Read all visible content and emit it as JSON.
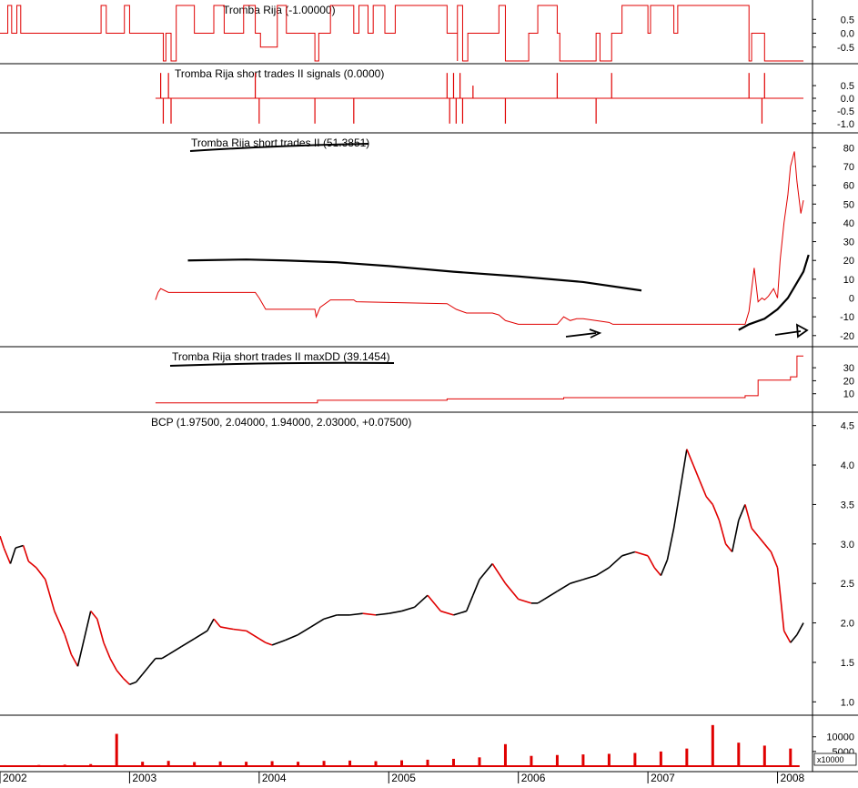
{
  "colors": {
    "series": "#e00000",
    "price_up": "#000000",
    "price_down": "#e00000",
    "annotation": "#000000",
    "axis": "#000000",
    "background": "#ffffff"
  },
  "x_axis": {
    "range": [
      2002.0,
      2008.27
    ],
    "tick_labels": [
      {
        "label": "2002",
        "x": 2002.0
      },
      {
        "label": "2003",
        "x": 2003.0
      },
      {
        "label": "2004",
        "x": 2004.0
      },
      {
        "label": "2005",
        "x": 2005.0
      },
      {
        "label": "2006",
        "x": 2006.0
      },
      {
        "label": "2007",
        "x": 2007.0
      },
      {
        "label": "2008",
        "x": 2008.0
      }
    ]
  },
  "chart_data": [
    {
      "type": "line",
      "title": "Tromba Rija (-1.00000)",
      "ylim": [
        -0.9,
        1.0
      ],
      "yticks": [
        "0.5",
        "0.0",
        "-0.5"
      ],
      "ytick_values": [
        0.5,
        0.0,
        -0.5
      ],
      "grid": false,
      "series": [
        {
          "color": "#e00000",
          "step": true,
          "x": [
            2002.0,
            2002.06,
            2002.09,
            2002.13,
            2002.16,
            2002.78,
            2002.82,
            2002.96,
            2003.0,
            2003.26,
            2003.28,
            2003.32,
            2003.36,
            2003.5,
            2003.65,
            2003.73,
            2003.88,
            2003.97,
            2004.01,
            2004.14,
            2004.21,
            2004.43,
            2004.46,
            2004.55,
            2004.73,
            2004.77,
            2004.84,
            2004.88,
            2004.97,
            2005.05,
            2005.45,
            2005.53,
            2005.53,
            2005.57,
            2005.61,
            2005.85,
            2005.9,
            2006.08,
            2006.15,
            2006.3,
            2006.32,
            2006.6,
            2006.63,
            2006.72,
            2006.8,
            2007.0,
            2007.02,
            2007.2,
            2007.23,
            2007.78,
            2007.8,
            2007.9,
            2008.2
          ],
          "y": [
            0.0,
            1.0,
            0.0,
            1.0,
            0.0,
            1.0,
            0.0,
            1.0,
            0.0,
            -1.0,
            0.0,
            -1.0,
            1.0,
            0.0,
            1.0,
            0.0,
            1.0,
            0.0,
            -0.5,
            1.0,
            0.0,
            -1.0,
            0.0,
            1.0,
            0.0,
            1.0,
            0.0,
            1.0,
            0.0,
            1.0,
            0.0,
            -1.0,
            1.0,
            -1.0,
            0.0,
            1.0,
            -1.0,
            0.0,
            1.0,
            0.0,
            -1.0,
            0.0,
            -1.0,
            0.0,
            1.0,
            0.0,
            1.0,
            0.0,
            1.0,
            -1.0,
            0.0,
            -1.0,
            -1.0
          ]
        }
      ]
    },
    {
      "type": "line",
      "title": "Tromba Rija short trades II signals (0.0000)",
      "ylim": [
        -1.15,
        1.15
      ],
      "yticks": [
        "0.5",
        "0.0",
        "-0.5",
        "-1.0"
      ],
      "ytick_values": [
        0.5,
        0.0,
        -0.5,
        -1.0
      ],
      "grid": false,
      "series": [
        {
          "color": "#e00000",
          "baseline": 0.0,
          "x_start": 2003.2,
          "x_end": 2008.2,
          "spikes": [
            {
              "x": 2003.24,
              "y": 1.0
            },
            {
              "x": 2003.26,
              "y": -1.0
            },
            {
              "x": 2003.3,
              "y": 1.0
            },
            {
              "x": 2003.32,
              "y": -1.0
            },
            {
              "x": 2003.97,
              "y": 1.0
            },
            {
              "x": 2004.0,
              "y": -1.0
            },
            {
              "x": 2004.43,
              "y": -1.0
            },
            {
              "x": 2004.73,
              "y": -1.0
            },
            {
              "x": 2005.45,
              "y": 1.0
            },
            {
              "x": 2005.47,
              "y": -1.0
            },
            {
              "x": 2005.5,
              "y": 1.0
            },
            {
              "x": 2005.52,
              "y": -1.0
            },
            {
              "x": 2005.55,
              "y": 1.0
            },
            {
              "x": 2005.57,
              "y": -1.0
            },
            {
              "x": 2005.65,
              "y": 0.5
            },
            {
              "x": 2005.9,
              "y": -1.0
            },
            {
              "x": 2006.3,
              "y": 1.0
            },
            {
              "x": 2006.6,
              "y": -1.0
            },
            {
              "x": 2006.72,
              "y": 1.0
            },
            {
              "x": 2007.78,
              "y": 1.0
            },
            {
              "x": 2007.88,
              "y": -1.0
            },
            {
              "x": 2007.9,
              "y": 1.0
            }
          ]
        }
      ]
    },
    {
      "type": "line",
      "title": "Tromba Rija short trades II (51.3851)",
      "ylim": [
        -23,
        85
      ],
      "yticks": [
        "80",
        "70",
        "60",
        "50",
        "40",
        "30",
        "20",
        "10",
        "0",
        "-10",
        "-20"
      ],
      "ytick_values": [
        80,
        70,
        60,
        50,
        40,
        30,
        20,
        10,
        0,
        -10,
        -20
      ],
      "grid": false,
      "series": [
        {
          "color": "#e00000",
          "x": [
            2003.2,
            2003.22,
            2003.24,
            2003.27,
            2003.3,
            2003.5,
            2003.97,
            2004.0,
            2004.05,
            2004.43,
            2004.44,
            2004.47,
            2004.55,
            2004.73,
            2004.75,
            2005.45,
            2005.52,
            2005.6,
            2005.8,
            2005.85,
            2005.9,
            2006.0,
            2006.3,
            2006.35,
            2006.4,
            2006.45,
            2006.5,
            2006.7,
            2006.73,
            2007.75,
            2007.78,
            2007.82,
            2007.85,
            2007.88,
            2007.9,
            2007.93,
            2007.97,
            2008.0,
            2008.02,
            2008.05,
            2008.08,
            2008.1,
            2008.13,
            2008.15,
            2008.18,
            2008.2
          ],
          "y": [
            -1,
            3,
            5,
            4,
            3,
            3,
            3,
            0,
            -6,
            -6,
            -10,
            -5,
            -1,
            -1,
            -2,
            -3,
            -6,
            -8,
            -8,
            -9,
            -12,
            -14,
            -14,
            -10,
            -12,
            -11,
            -11,
            -13,
            -14,
            -14,
            -7,
            16,
            -2,
            0,
            -1,
            1,
            5,
            0,
            20,
            40,
            55,
            70,
            78,
            62,
            45,
            52
          ]
        },
        {
          "color": "#000000",
          "annotation": true,
          "x": [
            2003.45,
            2003.9,
            2004.2,
            2004.6,
            2005.0,
            2005.5,
            2006.0,
            2006.5,
            2006.95
          ],
          "y": [
            20,
            20.5,
            20,
            19,
            17,
            14,
            11.5,
            8.5,
            4
          ]
        },
        {
          "color": "#000000",
          "annotation": true,
          "x": [
            2007.7,
            2007.78,
            2007.9,
            2008.0,
            2008.08,
            2008.14,
            2008.2,
            2008.24
          ],
          "y": [
            -17,
            -14,
            -11,
            -6,
            0,
            7,
            14,
            23
          ]
        }
      ]
    },
    {
      "type": "line",
      "title": "Tromba Rija short trades II maxDD (39.1454)",
      "ylim": [
        0,
        42
      ],
      "yticks": [
        "30",
        "20",
        "10"
      ],
      "ytick_values": [
        30,
        20,
        10
      ],
      "grid": false,
      "series": [
        {
          "color": "#e00000",
          "step": true,
          "x": [
            2003.2,
            2004.45,
            2005.45,
            2006.35,
            2007.75,
            2007.85,
            2008.1,
            2008.15,
            2008.2
          ],
          "y": [
            3,
            5,
            6,
            7,
            8.5,
            20.5,
            23,
            39,
            39
          ]
        }
      ]
    },
    {
      "type": "line",
      "title": "BCP (1.97500, 2.04000, 1.94000, 2.03000, +0.07500)",
      "ylim": [
        0.9,
        4.6
      ],
      "yticks": [
        "4.5",
        "4.0",
        "3.5",
        "3.0",
        "2.5",
        "2.0",
        "1.5",
        "1.0"
      ],
      "ytick_values": [
        4.5,
        4.0,
        3.5,
        3.0,
        2.5,
        2.0,
        1.5,
        1.0
      ],
      "grid": false,
      "series": [
        {
          "name": "BCP",
          "x": [
            2002.0,
            2002.03,
            2002.08,
            2002.12,
            2002.18,
            2002.22,
            2002.28,
            2002.35,
            2002.42,
            2002.5,
            2002.55,
            2002.6,
            2002.65,
            2002.7,
            2002.75,
            2002.8,
            2002.85,
            2002.9,
            2002.95,
            2003.0,
            2003.05,
            2003.1,
            2003.15,
            2003.2,
            2003.25,
            2003.3,
            2003.4,
            2003.5,
            2003.6,
            2003.65,
            2003.7,
            2003.8,
            2003.9,
            2004.0,
            2004.05,
            2004.1,
            2004.2,
            2004.3,
            2004.4,
            2004.5,
            2004.6,
            2004.7,
            2004.8,
            2004.9,
            2005.0,
            2005.1,
            2005.2,
            2005.3,
            2005.4,
            2005.5,
            2005.6,
            2005.65,
            2005.7,
            2005.8,
            2005.9,
            2006.0,
            2006.1,
            2006.15,
            2006.2,
            2006.3,
            2006.4,
            2006.5,
            2006.6,
            2006.7,
            2006.8,
            2006.9,
            2007.0,
            2007.05,
            2007.1,
            2007.15,
            2007.2,
            2007.25,
            2007.3,
            2007.35,
            2007.4,
            2007.45,
            2007.5,
            2007.55,
            2007.6,
            2007.65,
            2007.7,
            2007.75,
            2007.8,
            2007.85,
            2007.9,
            2007.95,
            2008.0,
            2008.05,
            2008.1,
            2008.15,
            2008.2
          ],
          "y": [
            3.1,
            2.95,
            2.75,
            2.95,
            2.98,
            2.78,
            2.7,
            2.55,
            2.15,
            1.85,
            1.6,
            1.45,
            1.8,
            2.15,
            2.05,
            1.75,
            1.55,
            1.4,
            1.3,
            1.22,
            1.25,
            1.35,
            1.45,
            1.55,
            1.55,
            1.6,
            1.7,
            1.8,
            1.9,
            2.05,
            1.95,
            1.92,
            1.9,
            1.8,
            1.75,
            1.72,
            1.78,
            1.85,
            1.95,
            2.05,
            2.1,
            2.1,
            2.12,
            2.1,
            2.12,
            2.15,
            2.2,
            2.35,
            2.15,
            2.1,
            2.15,
            2.35,
            2.55,
            2.75,
            2.5,
            2.3,
            2.25,
            2.25,
            2.3,
            2.4,
            2.5,
            2.55,
            2.6,
            2.7,
            2.85,
            2.9,
            2.85,
            2.7,
            2.6,
            2.8,
            3.2,
            3.7,
            4.2,
            4.0,
            3.8,
            3.6,
            3.5,
            3.3,
            3.0,
            2.9,
            3.3,
            3.5,
            3.2,
            3.1,
            3.0,
            2.9,
            2.7,
            1.9,
            1.75,
            1.85,
            2.0
          ]
        }
      ]
    },
    {
      "type": "bar",
      "title": "",
      "ylim": [
        0,
        15500
      ],
      "yticks": [
        "10000",
        "5000"
      ],
      "ytick_values": [
        10000,
        5000
      ],
      "unit_label": "x10000",
      "grid": false,
      "series": [
        {
          "name": "Volume",
          "color": "#e00000",
          "x": [
            2002.1,
            2002.3,
            2002.5,
            2002.7,
            2002.9,
            2003.1,
            2003.3,
            2003.5,
            2003.7,
            2003.9,
            2004.1,
            2004.3,
            2004.5,
            2004.7,
            2004.9,
            2005.1,
            2005.3,
            2005.5,
            2005.7,
            2005.9,
            2006.1,
            2006.3,
            2006.5,
            2006.7,
            2006.9,
            2007.1,
            2007.3,
            2007.5,
            2007.7,
            2007.9,
            2008.1
          ],
          "values": [
            300,
            400,
            500,
            700,
            11000,
            1500,
            1800,
            1400,
            1600,
            1500,
            1700,
            1500,
            1800,
            1900,
            1700,
            2000,
            2200,
            2500,
            3000,
            7500,
            3500,
            3800,
            4000,
            4200,
            4500,
            5000,
            6000,
            14000,
            8000,
            7000,
            6000
          ]
        }
      ]
    }
  ]
}
